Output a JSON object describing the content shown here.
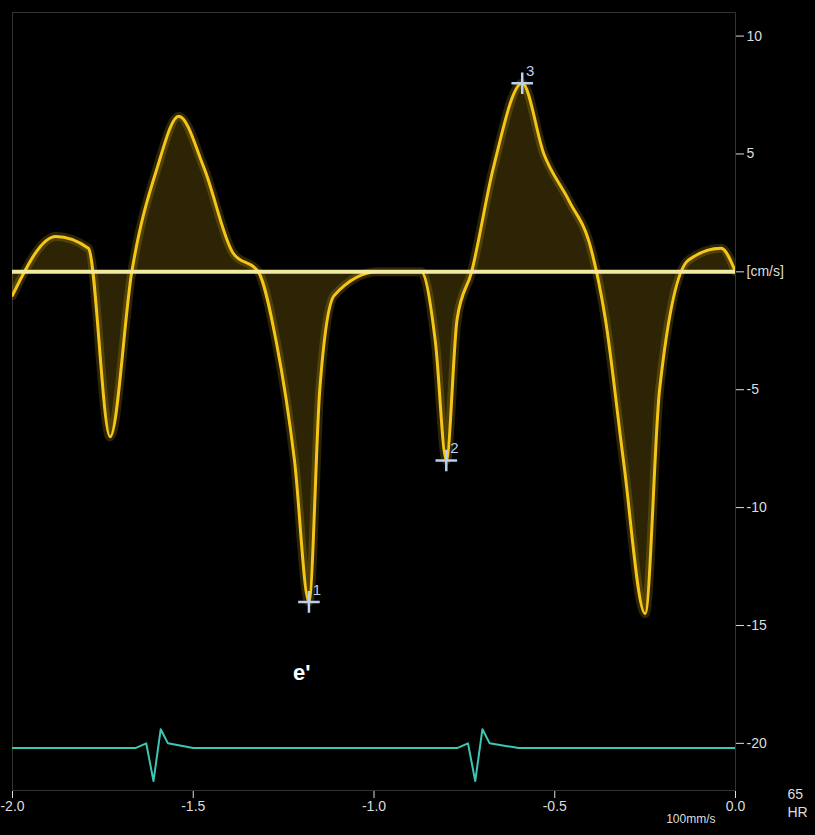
{
  "chart_data": {
    "type": "line",
    "baseline": 0,
    "xlim": [
      -2.0,
      0.0
    ],
    "xticks": [
      {
        "value": -2.0,
        "label": "-2.0"
      },
      {
        "value": -1.5,
        "label": "-1.5"
      },
      {
        "value": -1.0,
        "label": "-1.0"
      },
      {
        "value": -0.5,
        "label": "-0.5"
      },
      {
        "value": 0.0,
        "label": "0.0"
      }
    ],
    "ylim": [
      -22,
      11
    ],
    "yticks": [
      10,
      5,
      {
        "value": 0,
        "label": "[cm/s]"
      },
      -5,
      -10,
      -15,
      -20
    ],
    "grid": false,
    "series": [
      {
        "color": "#f5c518",
        "x": [
          -2.0,
          -1.88,
          -1.79,
          -1.73,
          -1.67,
          -1.6,
          -1.54,
          -1.47,
          -1.39,
          -1.32,
          -1.27,
          -1.22,
          -1.18,
          -1.15,
          -1.11,
          -0.99,
          -0.87,
          -0.83,
          -0.8,
          -0.77,
          -0.73,
          -0.67,
          -0.59,
          -0.53,
          -0.46,
          -0.4,
          -0.36,
          -0.31,
          -0.25,
          -0.21,
          -0.13,
          -0.04,
          0.0
        ],
        "values": [
          -1,
          1.5,
          1,
          -7,
          0,
          4.4,
          6.6,
          4.4,
          0.8,
          0,
          -3,
          -8,
          -14,
          -5,
          -1,
          0,
          0,
          -3,
          -8,
          -2,
          0,
          4.4,
          8,
          5,
          3,
          1,
          -2,
          -8,
          -14.5,
          -5,
          0.5,
          1,
          0
        ]
      },
      {
        "color": "#3cc8b4",
        "x": [
          -2.0,
          -1.66,
          -1.63,
          -1.61,
          -1.59,
          -1.57,
          -1.5,
          -1.45,
          -0.77,
          -0.74,
          -0.72,
          -0.7,
          -0.68,
          -0.6,
          -0.55,
          0.0
        ],
        "values": [
          -20.2,
          -20.2,
          -20.0,
          -21.6,
          -19.4,
          -20.0,
          -20.2,
          -20.2,
          -20.2,
          -20.0,
          -21.6,
          -19.4,
          -20.0,
          -20.2,
          -20.2,
          -20.2
        ]
      }
    ],
    "markers": [
      {
        "label": "1",
        "x": -1.18,
        "y": -14
      },
      {
        "label": "2",
        "x": -0.8,
        "y": -8
      },
      {
        "label": "3",
        "x": -0.59,
        "y": 8
      }
    ],
    "annotations": [
      {
        "text": "e'",
        "x": -1.2,
        "y": -17
      }
    ],
    "footer": {
      "sweep": "100mm/s",
      "hr_value": 65,
      "hr_label": "HR"
    }
  }
}
